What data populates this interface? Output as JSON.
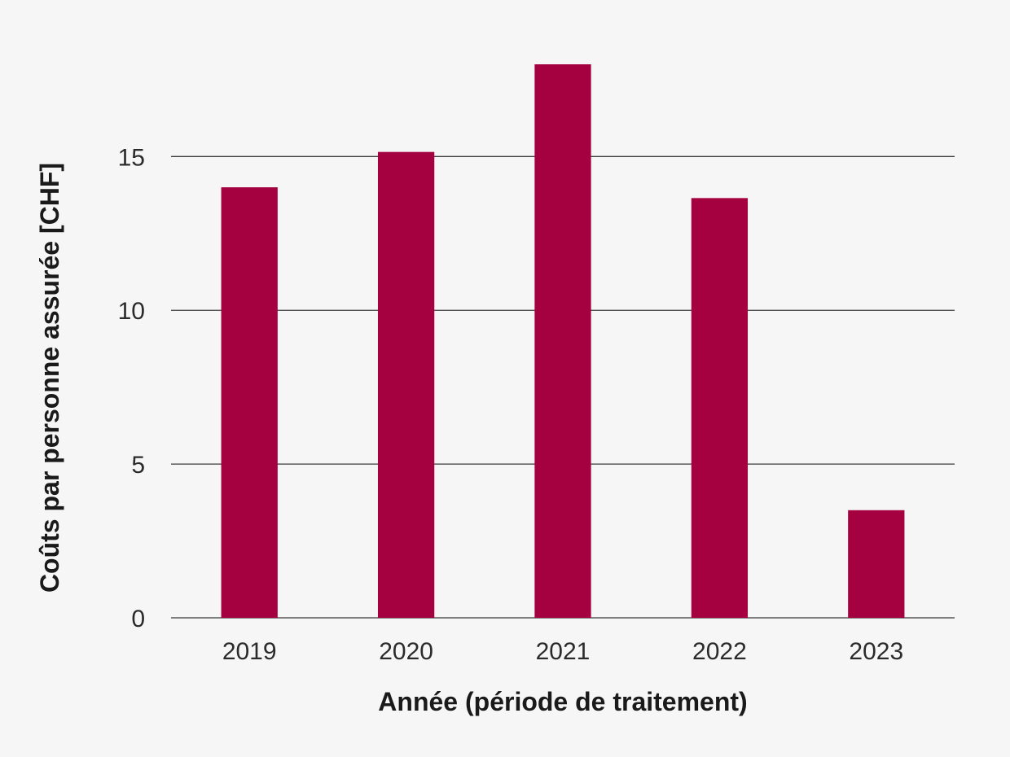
{
  "chart_data": {
    "type": "bar",
    "categories": [
      "2019",
      "2020",
      "2021",
      "2022",
      "2023"
    ],
    "values": [
      14.0,
      15.15,
      18.0,
      13.65,
      3.5
    ],
    "xlabel": "Année (période de traitement)",
    "ylabel": "Coûts par personne assurée [CHF]",
    "ylim": [
      0,
      18.9
    ],
    "yticks": [
      0,
      5,
      10,
      15
    ],
    "grid": true,
    "bar_color": "#a5003f",
    "background_color": "#f6f6f6"
  }
}
